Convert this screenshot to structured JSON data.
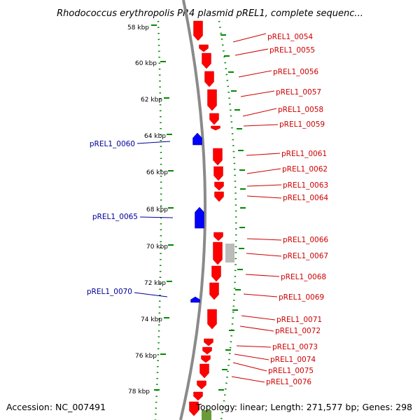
{
  "title": "Rhodococcus erythropolis PR4 plasmid pREL1, complete sequenc...",
  "footer": {
    "accession": "Accession: NC_007491",
    "topology": "Topology: linear; Length: 271,577 bp; Genes: 298"
  },
  "colors": {
    "forward": "#ff0000",
    "reverse": "#0000ff",
    "other": "#bbbbbb",
    "ruler": "#008800",
    "backbone": "#888888"
  },
  "kbp_ticks": [
    "58 kbp",
    "60 kbp",
    "62 kbp",
    "64 kbp",
    "66 kbp",
    "68 kbp",
    "70 kbp",
    "72 kbp",
    "74 kbp",
    "76 kbp",
    "78 kbp"
  ],
  "genes_forward": [
    "pREL1_0054",
    "pREL1_0055",
    "pREL1_0056",
    "pREL1_0057",
    "pREL1_0058",
    "pREL1_0059",
    "pREL1_0061",
    "pREL1_0062",
    "pREL1_0063",
    "pREL1_0064",
    "pREL1_0066",
    "pREL1_0067",
    "pREL1_0068",
    "pREL1_0069",
    "pREL1_0071",
    "pREL1_0072",
    "pREL1_0073",
    "pREL1_0074",
    "pREL1_0075",
    "pREL1_0076"
  ],
  "genes_reverse": [
    "pREL1_0060",
    "pREL1_0065",
    "pREL1_0070"
  ]
}
